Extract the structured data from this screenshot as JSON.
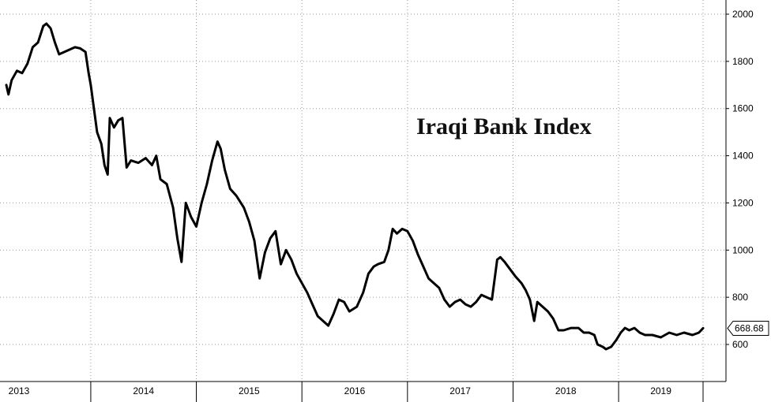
{
  "chart_data": {
    "type": "line",
    "title": "Iraqi Bank Index",
    "xlabel": "",
    "ylabel": "",
    "x_categories": [
      "2013",
      "2014",
      "2015",
      "2016",
      "2017",
      "2018",
      "2019"
    ],
    "yticks": [
      600,
      800,
      1000,
      1200,
      1400,
      1600,
      1800,
      2000
    ],
    "ylim": [
      470,
      2020
    ],
    "xlim": [
      2013.2,
      2019.95
    ],
    "grid": "dotted",
    "y_axis_side": "right",
    "last_value_label": "668.68",
    "colors": {
      "line": "#000000",
      "grid": "#9a9a9a",
      "label_bg": "#ffffff"
    },
    "series": [
      {
        "values": [
          [
            2013.2,
            1700
          ],
          [
            2013.22,
            1660
          ],
          [
            2013.25,
            1720
          ],
          [
            2013.3,
            1760
          ],
          [
            2013.35,
            1750
          ],
          [
            2013.4,
            1790
          ],
          [
            2013.45,
            1860
          ],
          [
            2013.5,
            1880
          ],
          [
            2013.55,
            1950
          ],
          [
            2013.58,
            1960
          ],
          [
            2013.62,
            1940
          ],
          [
            2013.66,
            1880
          ],
          [
            2013.7,
            1830
          ],
          [
            2013.75,
            1840
          ],
          [
            2013.8,
            1850
          ],
          [
            2013.85,
            1860
          ],
          [
            2013.9,
            1855
          ],
          [
            2013.95,
            1840
          ],
          [
            2013.98,
            1750
          ],
          [
            2014.0,
            1700
          ],
          [
            2014.03,
            1600
          ],
          [
            2014.06,
            1500
          ],
          [
            2014.1,
            1450
          ],
          [
            2014.13,
            1360
          ],
          [
            2014.16,
            1320
          ],
          [
            2014.18,
            1560
          ],
          [
            2014.22,
            1520
          ],
          [
            2014.26,
            1550
          ],
          [
            2014.3,
            1560
          ],
          [
            2014.34,
            1350
          ],
          [
            2014.38,
            1380
          ],
          [
            2014.45,
            1370
          ],
          [
            2014.52,
            1390
          ],
          [
            2014.58,
            1360
          ],
          [
            2014.62,
            1400
          ],
          [
            2014.66,
            1300
          ],
          [
            2014.72,
            1280
          ],
          [
            2014.78,
            1180
          ],
          [
            2014.82,
            1050
          ],
          [
            2014.86,
            950
          ],
          [
            2014.9,
            1200
          ],
          [
            2014.95,
            1140
          ],
          [
            2015.0,
            1100
          ],
          [
            2015.05,
            1200
          ],
          [
            2015.1,
            1280
          ],
          [
            2015.15,
            1380
          ],
          [
            2015.2,
            1460
          ],
          [
            2015.23,
            1430
          ],
          [
            2015.27,
            1340
          ],
          [
            2015.32,
            1260
          ],
          [
            2015.38,
            1230
          ],
          [
            2015.45,
            1180
          ],
          [
            2015.5,
            1120
          ],
          [
            2015.55,
            1040
          ],
          [
            2015.6,
            880
          ],
          [
            2015.65,
            990
          ],
          [
            2015.7,
            1050
          ],
          [
            2015.75,
            1080
          ],
          [
            2015.8,
            940
          ],
          [
            2015.85,
            1000
          ],
          [
            2015.9,
            960
          ],
          [
            2015.95,
            900
          ],
          [
            2016.0,
            860
          ],
          [
            2016.05,
            820
          ],
          [
            2016.1,
            770
          ],
          [
            2016.15,
            720
          ],
          [
            2016.2,
            700
          ],
          [
            2016.25,
            680
          ],
          [
            2016.3,
            730
          ],
          [
            2016.35,
            790
          ],
          [
            2016.4,
            780
          ],
          [
            2016.45,
            740
          ],
          [
            2016.52,
            760
          ],
          [
            2016.58,
            820
          ],
          [
            2016.63,
            900
          ],
          [
            2016.68,
            930
          ],
          [
            2016.72,
            940
          ],
          [
            2016.78,
            950
          ],
          [
            2016.82,
            1000
          ],
          [
            2016.86,
            1090
          ],
          [
            2016.9,
            1070
          ],
          [
            2016.95,
            1090
          ],
          [
            2017.0,
            1080
          ],
          [
            2017.05,
            1040
          ],
          [
            2017.1,
            980
          ],
          [
            2017.15,
            930
          ],
          [
            2017.2,
            880
          ],
          [
            2017.25,
            860
          ],
          [
            2017.3,
            840
          ],
          [
            2017.35,
            790
          ],
          [
            2017.4,
            760
          ],
          [
            2017.45,
            780
          ],
          [
            2017.5,
            790
          ],
          [
            2017.55,
            770
          ],
          [
            2017.6,
            760
          ],
          [
            2017.65,
            780
          ],
          [
            2017.7,
            810
          ],
          [
            2017.75,
            800
          ],
          [
            2017.8,
            790
          ],
          [
            2017.85,
            960
          ],
          [
            2017.88,
            970
          ],
          [
            2017.92,
            950
          ],
          [
            2017.97,
            920
          ],
          [
            2018.02,
            890
          ],
          [
            2018.08,
            860
          ],
          [
            2018.12,
            830
          ],
          [
            2018.16,
            790
          ],
          [
            2018.2,
            700
          ],
          [
            2018.23,
            780
          ],
          [
            2018.28,
            760
          ],
          [
            2018.33,
            740
          ],
          [
            2018.38,
            710
          ],
          [
            2018.43,
            660
          ],
          [
            2018.48,
            660
          ],
          [
            2018.55,
            670
          ],
          [
            2018.62,
            670
          ],
          [
            2018.67,
            650
          ],
          [
            2018.72,
            650
          ],
          [
            2018.77,
            640
          ],
          [
            2018.8,
            600
          ],
          [
            2018.85,
            590
          ],
          [
            2018.88,
            580
          ],
          [
            2018.93,
            590
          ],
          [
            2018.98,
            620
          ],
          [
            2019.02,
            650
          ],
          [
            2019.06,
            670
          ],
          [
            2019.1,
            660
          ],
          [
            2019.15,
            670
          ],
          [
            2019.2,
            650
          ],
          [
            2019.25,
            640
          ],
          [
            2019.32,
            640
          ],
          [
            2019.4,
            630
          ],
          [
            2019.48,
            650
          ],
          [
            2019.55,
            640
          ],
          [
            2019.62,
            650
          ],
          [
            2019.7,
            640
          ],
          [
            2019.76,
            650
          ],
          [
            2019.8,
            668.68
          ]
        ]
      }
    ]
  }
}
